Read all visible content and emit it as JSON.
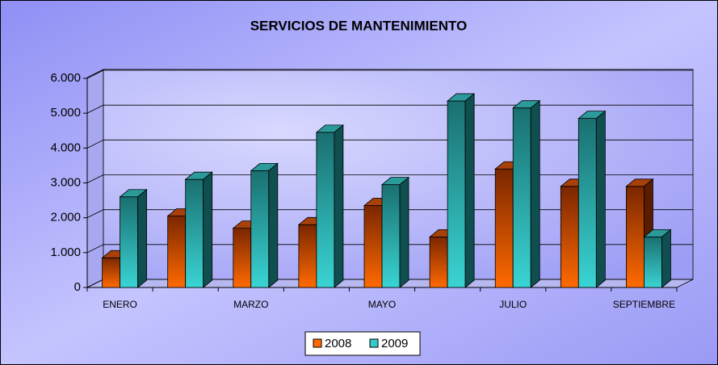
{
  "chart_data": {
    "type": "bar3d",
    "title": "SERVICIOS DE MANTENIMIENTO",
    "categories": [
      "ENERO",
      null,
      "MARZO",
      null,
      "MAYO",
      null,
      "JULIO",
      null,
      "SEPTIEMBRE"
    ],
    "series": [
      {
        "name": "2008",
        "color": "#ff6a00",
        "values": [
          850,
          2050,
          1700,
          1800,
          2350,
          1450,
          3400,
          2900,
          2900
        ]
      },
      {
        "name": "2009",
        "color": "#33cccc",
        "values": [
          2600,
          3100,
          3350,
          4450,
          2950,
          5350,
          5150,
          4850,
          1450
        ]
      }
    ],
    "ylim": [
      0,
      6000
    ],
    "yticks": [
      {
        "value": 0,
        "label": "0"
      },
      {
        "value": 1000,
        "label": "1.000"
      },
      {
        "value": 2000,
        "label": "2.000"
      },
      {
        "value": 3000,
        "label": "3.000"
      },
      {
        "value": 4000,
        "label": "4.000"
      },
      {
        "value": 5000,
        "label": "5.000"
      },
      {
        "value": 6000,
        "label": "6.000"
      }
    ],
    "grid": true,
    "legend": "bottom"
  }
}
